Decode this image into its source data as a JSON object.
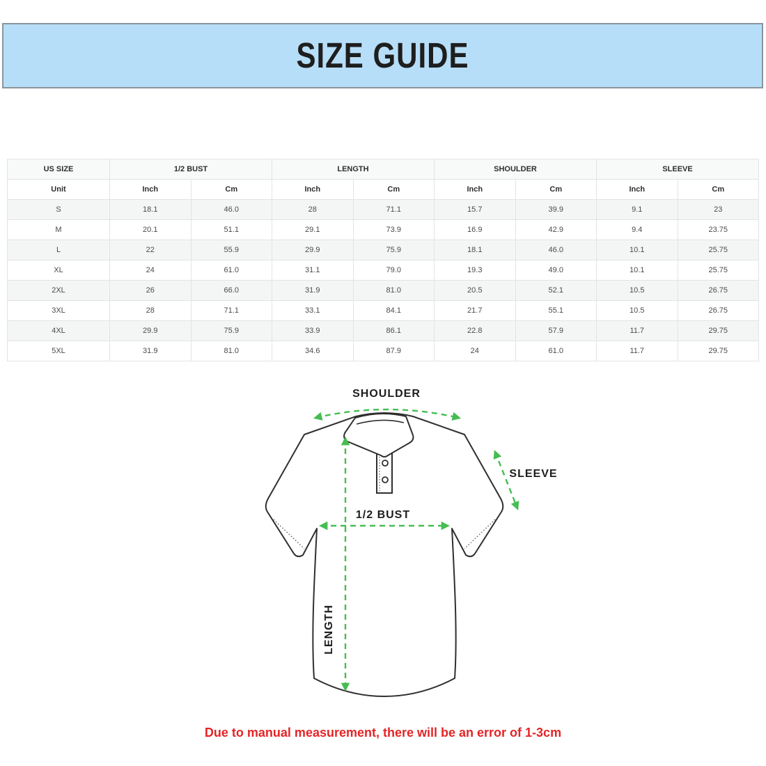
{
  "banner": {
    "title": "SIZE GUIDE"
  },
  "table": {
    "column_groups": [
      {
        "label": "US SIZE",
        "span": 1
      },
      {
        "label": "1/2 BUST",
        "span": 2
      },
      {
        "label": "LENGTH",
        "span": 2
      },
      {
        "label": "SHOULDER",
        "span": 2
      },
      {
        "label": "SLEEVE",
        "span": 2
      }
    ],
    "unit_row": [
      "Unit",
      "Inch",
      "Cm",
      "Inch",
      "Cm",
      "Inch",
      "Cm",
      "Inch",
      "Cm"
    ],
    "rows": [
      [
        "S",
        "18.1",
        "46.0",
        "28",
        "71.1",
        "15.7",
        "39.9",
        "9.1",
        "23"
      ],
      [
        "M",
        "20.1",
        "51.1",
        "29.1",
        "73.9",
        "16.9",
        "42.9",
        "9.4",
        "23.75"
      ],
      [
        "L",
        "22",
        "55.9",
        "29.9",
        "75.9",
        "18.1",
        "46.0",
        "10.1",
        "25.75"
      ],
      [
        "XL",
        "24",
        "61.0",
        "31.1",
        "79.0",
        "19.3",
        "49.0",
        "10.1",
        "25.75"
      ],
      [
        "2XL",
        "26",
        "66.0",
        "31.9",
        "81.0",
        "20.5",
        "52.1",
        "10.5",
        "26.75"
      ],
      [
        "3XL",
        "28",
        "71.1",
        "33.1",
        "84.1",
        "21.7",
        "55.1",
        "10.5",
        "26.75"
      ],
      [
        "4XL",
        "29.9",
        "75.9",
        "33.9",
        "86.1",
        "22.8",
        "57.9",
        "11.7",
        "29.75"
      ],
      [
        "5XL",
        "31.9",
        "81.0",
        "34.6",
        "87.9",
        "24",
        "61.0",
        "11.7",
        "29.75"
      ]
    ]
  },
  "diagram": {
    "labels": {
      "shoulder": "SHOULDER",
      "sleeve": "SLEEVE",
      "bust": "1/2 BUST",
      "length": "LENGTH"
    }
  },
  "note": {
    "text": "Due to manual measurement, there will be an error of 1-3cm"
  },
  "colors": {
    "banner_bg": "#b7def8",
    "banner_border": "#8a949c",
    "measure_green": "#46bd52",
    "outline_dark": "#2f2f2f",
    "note_red": "#e42527",
    "stripe_gray": "#f4f5f5",
    "grid_border": "#e2e4e4",
    "header_bg": "#f8f9f9"
  }
}
